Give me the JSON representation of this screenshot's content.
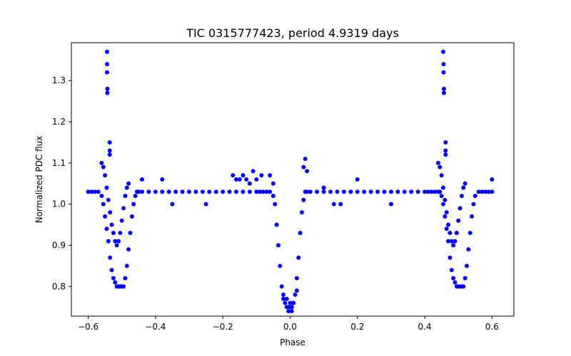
{
  "chart_data": {
    "type": "scatter",
    "title": "TIC 0315777423, period 4.9319 days",
    "xlabel": "Phase",
    "ylabel": "Normalized PDC flux",
    "xlim": [
      -0.65,
      0.665
    ],
    "ylim": [
      0.728,
      1.392
    ],
    "xticks": [
      -0.6,
      -0.4,
      -0.2,
      0.0,
      0.2,
      0.4,
      0.6
    ],
    "xtick_labels": [
      "−0.6",
      "−0.4",
      "−0.2",
      "0.0",
      "0.2",
      "0.4",
      "0.6"
    ],
    "yticks": [
      0.8,
      0.9,
      1.0,
      1.1,
      1.2,
      1.3
    ],
    "ytick_labels": [
      "0.8",
      "0.9",
      "1.0",
      "1.1",
      "1.2",
      "1.3"
    ],
    "grid": false,
    "legend": "none",
    "marker_color": "#0000ff",
    "series": [
      {
        "x": [
          -0.6,
          -0.59,
          -0.58,
          -0.57,
          -0.56,
          -0.555,
          -0.55,
          -0.545,
          -0.54,
          -0.535,
          -0.53,
          -0.525,
          -0.52,
          -0.515,
          -0.51,
          -0.505,
          -0.5,
          -0.495,
          -0.49,
          -0.485,
          -0.48,
          -0.475,
          -0.47,
          -0.465,
          -0.46,
          -0.455,
          -0.45,
          -0.44,
          -0.42,
          -0.4,
          -0.38,
          -0.36,
          -0.34,
          -0.32,
          -0.3,
          -0.28,
          -0.26,
          -0.24,
          -0.22,
          -0.2,
          -0.18,
          -0.16,
          -0.14,
          -0.12,
          -0.1,
          -0.09,
          -0.08,
          -0.07,
          -0.06,
          -0.05,
          -0.045,
          -0.04,
          -0.035,
          -0.03,
          -0.025,
          -0.02,
          -0.015,
          -0.01,
          -0.005,
          0.0,
          0.005,
          0.01,
          0.015,
          0.02,
          0.025,
          0.03,
          0.035,
          0.04,
          0.045,
          0.05,
          0.06,
          0.08,
          0.1,
          0.12,
          0.14,
          0.16,
          0.18,
          0.2,
          0.22,
          0.24,
          0.26,
          0.28,
          0.3,
          0.32,
          0.34,
          0.36,
          0.38,
          0.4,
          0.41,
          0.42,
          0.43,
          0.44,
          0.445,
          0.45,
          0.455,
          0.46,
          0.465,
          0.47,
          0.475,
          0.48,
          0.485,
          0.49,
          0.495,
          0.5,
          0.505,
          0.51,
          0.515,
          0.52,
          0.525,
          0.53,
          0.535,
          0.54,
          0.545,
          0.55,
          0.56,
          0.57,
          0.58,
          0.59,
          0.6,
          -0.56,
          -0.555,
          -0.55,
          -0.545,
          -0.54,
          -0.535,
          -0.53,
          -0.525,
          -0.52,
          -0.515,
          -0.51,
          -0.505,
          -0.5,
          -0.495,
          -0.49,
          -0.485,
          -0.48,
          0.44,
          0.445,
          0.45,
          0.455,
          0.46,
          0.465,
          0.47,
          0.475,
          0.48,
          0.485,
          0.49,
          0.495,
          0.5,
          0.505,
          0.51,
          0.515,
          0.52,
          -0.544,
          -0.544,
          -0.544,
          -0.543,
          -0.543,
          -0.536,
          -0.536,
          -0.536,
          0.455,
          0.456,
          0.456,
          0.457,
          0.457,
          0.462,
          0.462,
          0.462,
          -0.17,
          -0.16,
          -0.15,
          -0.14,
          -0.13,
          -0.12,
          -0.11,
          -0.1,
          -0.085,
          -0.06,
          -0.05,
          0.04,
          0.045,
          0.05,
          0.1,
          0.15,
          0.2,
          0.3,
          -0.44,
          -0.38,
          -0.25,
          -0.35,
          0.6,
          0.13,
          -0.01,
          -0.005,
          0.0,
          0.005,
          0.01,
          -0.02,
          0.02
        ],
        "y": [
          1.03,
          1.03,
          1.03,
          1.03,
          1.02,
          1.0,
          0.97,
          0.94,
          0.91,
          0.87,
          0.84,
          0.82,
          0.81,
          0.8,
          0.8,
          0.8,
          0.8,
          0.8,
          0.82,
          0.85,
          0.89,
          0.93,
          0.97,
          1.0,
          1.02,
          1.03,
          1.03,
          1.03,
          1.03,
          1.03,
          1.03,
          1.03,
          1.03,
          1.03,
          1.03,
          1.03,
          1.03,
          1.03,
          1.03,
          1.03,
          1.03,
          1.03,
          1.03,
          1.03,
          1.03,
          1.03,
          1.03,
          1.03,
          1.03,
          1.02,
          1.0,
          0.95,
          0.9,
          0.85,
          0.8,
          0.77,
          0.76,
          0.75,
          0.75,
          0.75,
          0.75,
          0.76,
          0.78,
          0.82,
          0.87,
          0.93,
          0.98,
          1.01,
          1.03,
          1.03,
          1.03,
          1.03,
          1.03,
          1.03,
          1.03,
          1.03,
          1.03,
          1.03,
          1.03,
          1.03,
          1.03,
          1.03,
          1.03,
          1.03,
          1.03,
          1.03,
          1.03,
          1.03,
          1.03,
          1.03,
          1.03,
          1.03,
          1.03,
          1.02,
          1.0,
          0.97,
          0.94,
          0.91,
          0.87,
          0.84,
          0.82,
          0.81,
          0.8,
          0.8,
          0.8,
          0.8,
          0.8,
          0.82,
          0.85,
          0.89,
          0.93,
          0.97,
          1.0,
          1.02,
          1.03,
          1.03,
          1.03,
          1.03,
          1.03,
          1.1,
          1.09,
          1.07,
          1.04,
          1.01,
          0.98,
          0.95,
          0.93,
          0.91,
          0.9,
          0.91,
          0.93,
          0.96,
          0.99,
          1.02,
          1.04,
          1.05,
          1.1,
          1.09,
          1.07,
          1.04,
          1.01,
          0.98,
          0.95,
          0.93,
          0.91,
          0.9,
          0.91,
          0.93,
          0.96,
          0.99,
          1.02,
          1.04,
          1.05,
          1.37,
          1.34,
          1.32,
          1.28,
          1.27,
          1.15,
          1.13,
          1.12,
          1.37,
          1.34,
          1.32,
          1.28,
          1.27,
          1.15,
          1.13,
          1.12,
          1.07,
          1.06,
          1.06,
          1.07,
          1.06,
          1.05,
          1.08,
          1.06,
          1.07,
          1.07,
          1.05,
          1.09,
          1.11,
          1.08,
          1.04,
          1.0,
          1.06,
          1.0,
          1.06,
          1.06,
          1.0,
          1.0,
          1.06,
          1.0,
          0.77,
          0.74,
          0.76,
          0.74,
          0.76,
          0.78,
          0.79
        ]
      }
    ]
  }
}
